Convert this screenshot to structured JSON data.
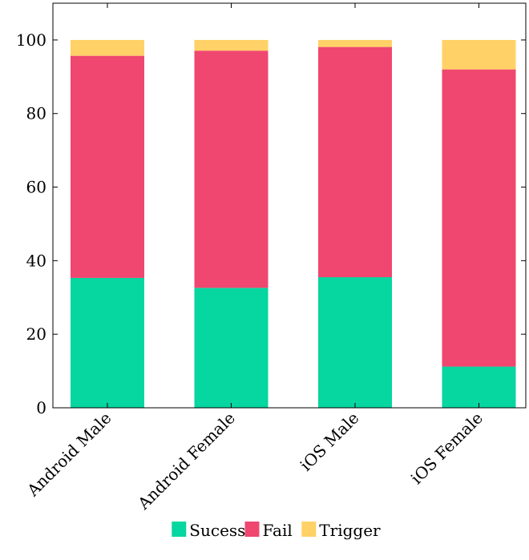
{
  "chart_data": {
    "type": "bar",
    "stacked": true,
    "categories": [
      "Android Male",
      "Android Female",
      "iOS Male",
      "iOS Female"
    ],
    "series": [
      {
        "name": "Sucess",
        "values": [
          35.3,
          32.6,
          35.5,
          11.2
        ],
        "color": "#06d6a0"
      },
      {
        "name": "Fail",
        "values": [
          60.4,
          64.5,
          62.6,
          80.8
        ],
        "color": "#ef476f"
      },
      {
        "name": "Trigger",
        "values": [
          4.3,
          2.9,
          1.9,
          8.0
        ],
        "color": "#ffd166"
      }
    ],
    "ylim": [
      0,
      110
    ],
    "yticks": [
      0,
      20,
      40,
      60,
      80,
      100
    ],
    "xlabel": "",
    "ylabel": "",
    "grid": false,
    "legend_position": "bottom-center"
  }
}
